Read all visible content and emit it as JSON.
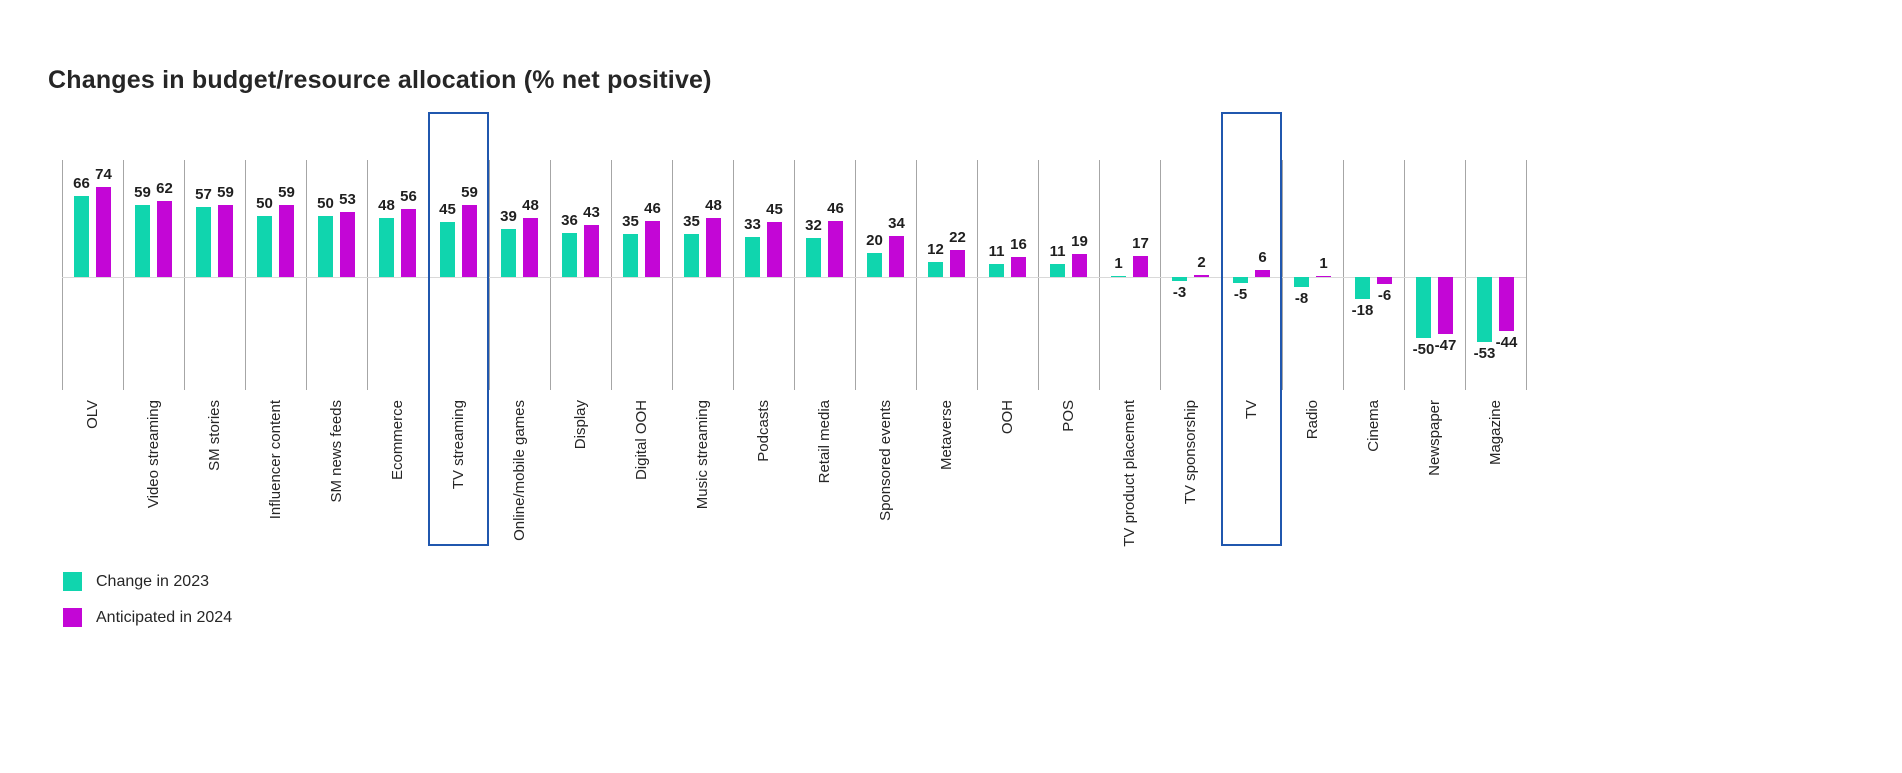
{
  "page": {
    "background": "#ffffff"
  },
  "chart_data": {
    "type": "bar",
    "title": "Changes in budget/resource allocation (% net positive)",
    "categories": [
      "OLV",
      "Video streaming",
      "SM stories",
      "Influencer content",
      "SM news feeds",
      "Ecommerce",
      "TV streaming",
      "Online/mobile games",
      "Display",
      "Digital OOH",
      "Music streaming",
      "Podcasts",
      "Retail media",
      "Sponsored events",
      "Metaverse",
      "OOH",
      "POS",
      "TV product placement",
      "TV sponsorship",
      "TV",
      "Radio",
      "Cinema",
      "Newspaper",
      "Magazine"
    ],
    "series": [
      {
        "name": "Change in 2023",
        "key": "change-in-2023",
        "color": "#10d5ae",
        "values": [
          66,
          59,
          57,
          50,
          50,
          48,
          45,
          39,
          36,
          35,
          35,
          33,
          32,
          20,
          12,
          11,
          11,
          1,
          -3,
          -5,
          -8,
          -18,
          -50,
          -53
        ]
      },
      {
        "name": "Anticipated in 2024",
        "key": "anticipated-in-2024",
        "color": "#c306d6",
        "values": [
          74,
          62,
          59,
          59,
          53,
          56,
          59,
          48,
          43,
          46,
          48,
          45,
          46,
          34,
          22,
          16,
          19,
          17,
          2,
          6,
          1,
          -6,
          -47,
          -44
        ]
      }
    ],
    "highlighted_categories": [
      "TV streaming",
      "TV"
    ],
    "highlight_box_color": "#2057ae",
    "value_axis": {
      "min": -53,
      "max": 74,
      "zero_line": true
    },
    "grid": "vertical category separators",
    "legend_position": "bottom-left"
  }
}
